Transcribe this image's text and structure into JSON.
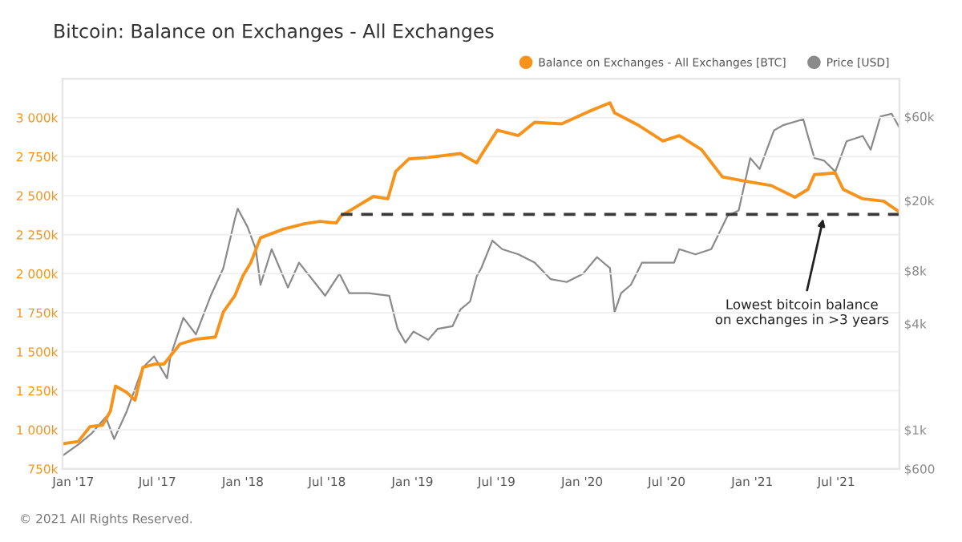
{
  "chart_data": {
    "type": "line",
    "title": "Bitcoin: Balance on Exchanges - All Exchanges",
    "xlim": [
      "2016-12-09",
      "2021-11-14"
    ],
    "xticks": [
      {
        "value": "2017-01-01",
        "label": "Jan '17"
      },
      {
        "value": "2017-07-01",
        "label": "Jul '17"
      },
      {
        "value": "2018-01-01",
        "label": "Jan '18"
      },
      {
        "value": "2018-07-01",
        "label": "Jul '18"
      },
      {
        "value": "2019-01-01",
        "label": "Jan '19"
      },
      {
        "value": "2019-07-01",
        "label": "Jul '19"
      },
      {
        "value": "2020-01-01",
        "label": "Jan '20"
      },
      {
        "value": "2020-07-01",
        "label": "Jul '20"
      },
      {
        "value": "2021-01-01",
        "label": "Jan '21"
      },
      {
        "value": "2021-07-01",
        "label": "Jul '21"
      }
    ],
    "ylim": [
      750000,
      3250000
    ],
    "yticks": [
      {
        "value": 750000,
        "label": "750k"
      },
      {
        "value": 1000000,
        "label": "1 000k"
      },
      {
        "value": 1250000,
        "label": "1 250k"
      },
      {
        "value": 1500000,
        "label": "1 500k"
      },
      {
        "value": 1750000,
        "label": "1 750k"
      },
      {
        "value": 2000000,
        "label": "2 000k"
      },
      {
        "value": 2250000,
        "label": "2 250k"
      },
      {
        "value": 2500000,
        "label": "2 500k"
      },
      {
        "value": 2750000,
        "label": "2 750k"
      },
      {
        "value": 3000000,
        "label": "3 000k"
      },
      {
        "value": 3250000,
        "label": null
      }
    ],
    "log": "y2",
    "y2lim": [
      600,
      98600
    ],
    "y2ticks": [
      {
        "value": 600,
        "label": "$600"
      },
      {
        "value": 1000,
        "label": "$1k"
      },
      {
        "value": 4000,
        "label": "$4k"
      },
      {
        "value": 8000,
        "label": "$8k"
      },
      {
        "value": 20000,
        "label": "$20k"
      },
      {
        "value": 60000,
        "label": "$60k"
      }
    ],
    "grid": "y",
    "legend": "top right",
    "series": [
      {
        "name": "Balance on Exchanges - All Exchanges [BTC]",
        "color": "#f7931a",
        "x": [
          "2016-12-09",
          "2017-01-12",
          "2017-02-06",
          "2017-03-05",
          "2017-03-22",
          "2017-04-02",
          "2017-04-26",
          "2017-05-14",
          "2017-05-31",
          "2017-06-24",
          "2017-07-15",
          "2017-08-19",
          "2017-09-22",
          "2017-11-03",
          "2017-11-20",
          "2017-12-15",
          "2018-01-01",
          "2018-01-18",
          "2018-02-08",
          "2018-03-29",
          "2018-05-13",
          "2018-06-16",
          "2018-07-21",
          "2018-07-31",
          "2018-08-31",
          "2018-10-09",
          "2018-11-09",
          "2018-11-26",
          "2018-12-24",
          "2019-02-04",
          "2019-04-14",
          "2019-05-19",
          "2019-05-29",
          "2019-07-03",
          "2019-08-17",
          "2019-09-21",
          "2019-11-18",
          "2020-01-16",
          "2020-03-01",
          "2020-03-11",
          "2020-04-29",
          "2020-06-23",
          "2020-07-28",
          "2020-09-14",
          "2020-10-29",
          "2020-12-14",
          "2021-02-11",
          "2021-04-03",
          "2021-05-01",
          "2021-05-15",
          "2021-06-29",
          "2021-07-16",
          "2021-08-27",
          "2021-10-11",
          "2021-11-14"
        ],
        "values": [
          910000,
          925000,
          1020000,
          1030000,
          1120000,
          1280000,
          1240000,
          1190000,
          1400000,
          1420000,
          1420000,
          1550000,
          1580000,
          1595000,
          1755000,
          1860000,
          1985000,
          2070000,
          2230000,
          2285000,
          2320000,
          2335000,
          2325000,
          2370000,
          2425000,
          2495000,
          2480000,
          2655000,
          2735000,
          2745000,
          2770000,
          2710000,
          2760000,
          2920000,
          2885000,
          2970000,
          2960000,
          3040000,
          3095000,
          3030000,
          2955000,
          2850000,
          2885000,
          2795000,
          2620000,
          2595000,
          2565000,
          2490000,
          2540000,
          2635000,
          2645000,
          2540000,
          2480000,
          2465000,
          2395000
        ]
      },
      {
        "name": "Price [USD]",
        "color": "#8a8a8a",
        "axis": "y2",
        "x": [
          "2016-12-09",
          "2017-01-12",
          "2017-02-09",
          "2017-03-12",
          "2017-03-30",
          "2017-04-26",
          "2017-05-31",
          "2017-06-24",
          "2017-07-22",
          "2017-07-29",
          "2017-08-26",
          "2017-09-22",
          "2017-10-24",
          "2017-11-20",
          "2017-12-15",
          "2017-12-21",
          "2018-01-11",
          "2018-01-29",
          "2018-02-08",
          "2018-03-04",
          "2018-04-08",
          "2018-05-02",
          "2018-06-27",
          "2018-07-28",
          "2018-08-18",
          "2018-09-28",
          "2018-11-12",
          "2018-11-30",
          "2018-12-17",
          "2019-01-03",
          "2019-02-04",
          "2019-02-24",
          "2019-03-28",
          "2019-04-14",
          "2019-05-05",
          "2019-05-19",
          "2019-05-29",
          "2019-06-22",
          "2019-07-13",
          "2019-08-17",
          "2019-09-21",
          "2019-10-25",
          "2019-11-29",
          "2020-01-03",
          "2020-02-02",
          "2020-03-01",
          "2020-03-11",
          "2020-03-25",
          "2020-04-15",
          "2020-05-09",
          "2020-06-13",
          "2020-07-17",
          "2020-07-28",
          "2020-09-01",
          "2020-10-05",
          "2020-11-09",
          "2020-12-03",
          "2020-12-28",
          "2021-01-17",
          "2021-02-17",
          "2021-03-10",
          "2021-04-21",
          "2021-05-01",
          "2021-05-15",
          "2021-06-05",
          "2021-06-29",
          "2021-07-23",
          "2021-08-27",
          "2021-09-13",
          "2021-10-04",
          "2021-10-28",
          "2021-11-14"
        ],
        "values": [
          713,
          825,
          950,
          1180,
          885,
          1270,
          2260,
          2610,
          1960,
          2610,
          4320,
          3480,
          5770,
          8270,
          15800,
          18000,
          14200,
          10600,
          6650,
          10600,
          6420,
          8890,
          5770,
          7690,
          5970,
          5970,
          5770,
          3740,
          3120,
          3610,
          3240,
          3740,
          3870,
          4810,
          5350,
          7410,
          8270,
          11850,
          10600,
          9900,
          8890,
          7170,
          6900,
          7690,
          9550,
          8270,
          4650,
          5970,
          6650,
          8890,
          8890,
          8890,
          10600,
          9900,
          10600,
          16400,
          17600,
          34900,
          30200,
          50100,
          53800,
          57900,
          46600,
          34900,
          33700,
          29200,
          43400,
          46600,
          38900,
          60000,
          62300,
          51900
        ]
      },
      {
        "type": "line",
        "line_style": "dashed",
        "color": "#3a3a3a",
        "x": [
          "2018-07-31",
          "2021-11-14"
        ],
        "values": [
          2380000,
          2380000
        ]
      }
    ],
    "annotations": [
      {
        "text": "Lowest bitcoin balance\non exchanges in >3 years",
        "x": "2021-06-05",
        "y": 2380000
      },
      "© 2021 All Rights Reserved."
    ]
  }
}
